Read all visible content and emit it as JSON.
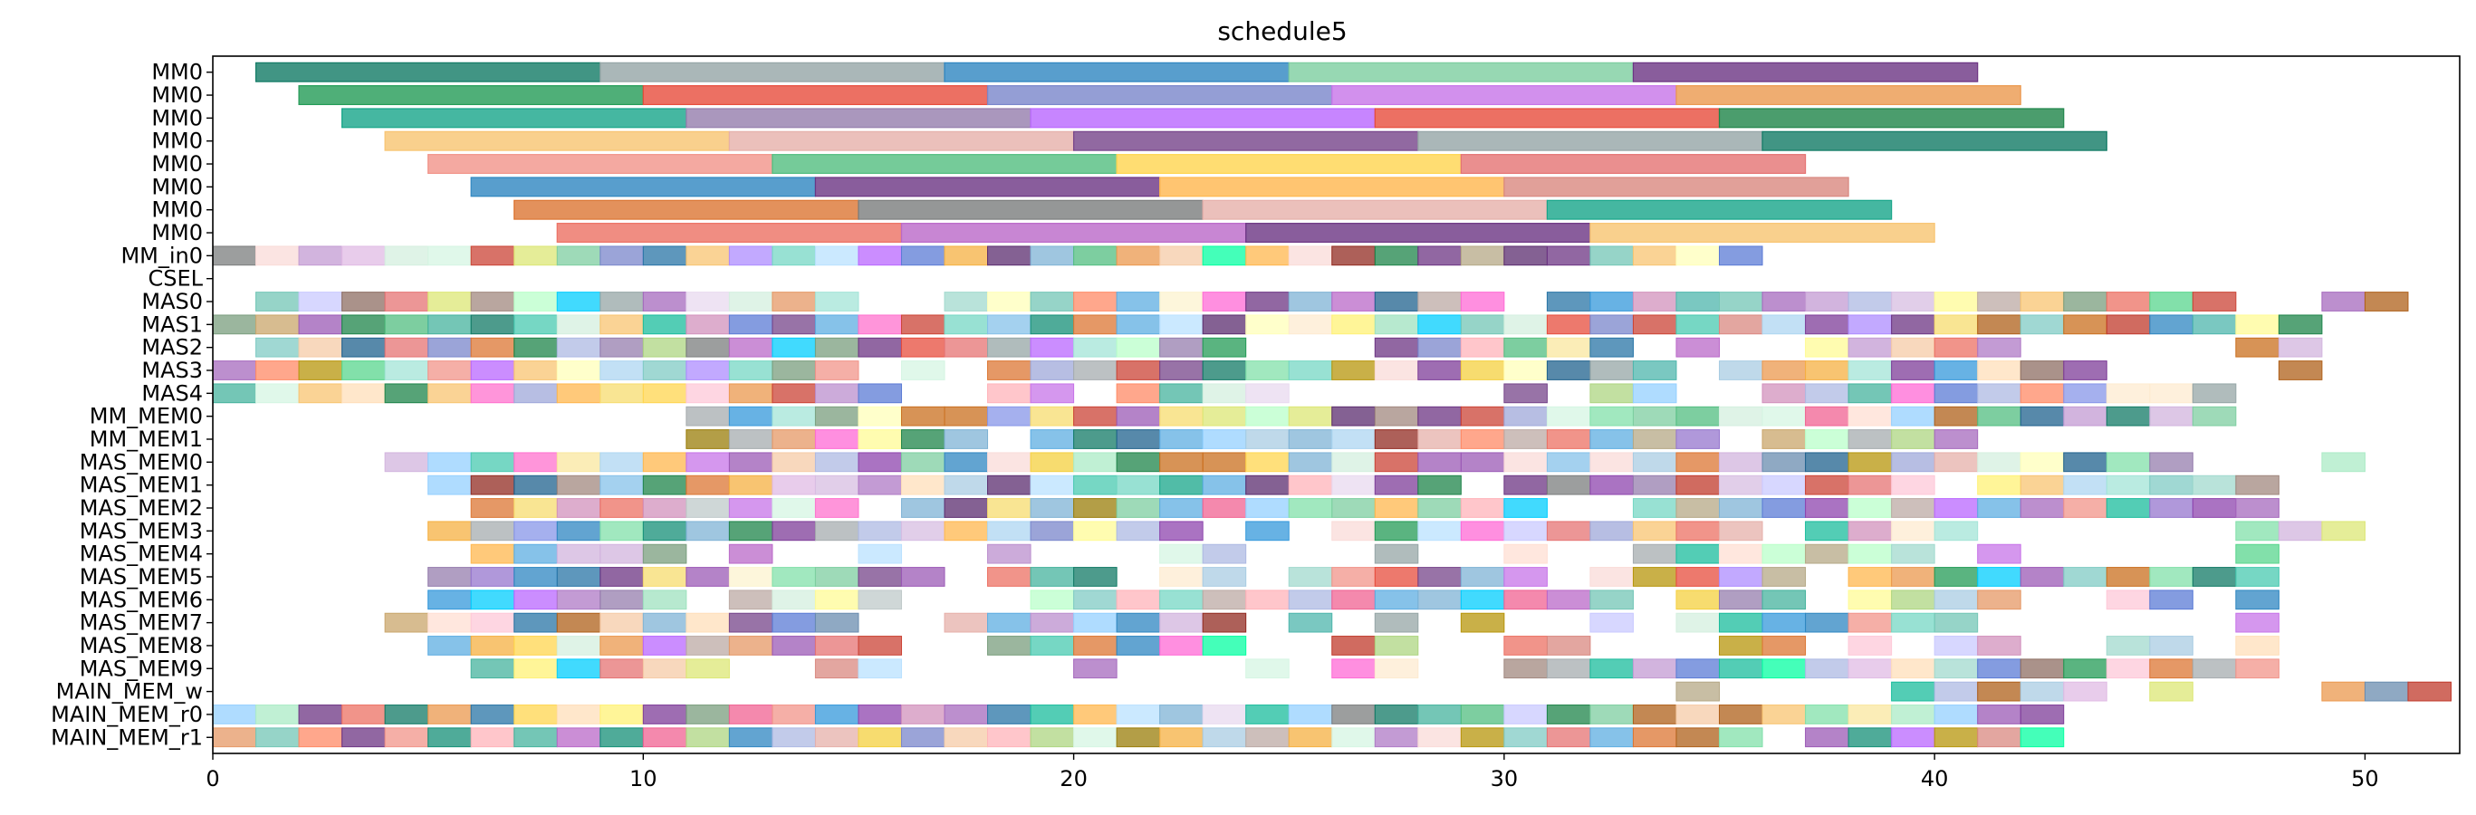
{
  "chart_data": {
    "type": "gantt",
    "title": "schedule5",
    "xlabel": "",
    "ylabel": "",
    "xlim": [
      0,
      52.2
    ],
    "xticks": [
      0,
      10,
      20,
      30,
      40,
      50
    ],
    "grid": false,
    "rows": [
      "MM0",
      "MM0",
      "MM0",
      "MM0",
      "MM0",
      "MM0",
      "MM0",
      "MM0",
      "MM_in0",
      "CSEL",
      "MAS0",
      "MAS1",
      "MAS2",
      "MAS3",
      "MAS4",
      "MM_MEM0",
      "MM_MEM1",
      "MAS_MEM0",
      "MAS_MEM1",
      "MAS_MEM2",
      "MAS_MEM3",
      "MAS_MEM4",
      "MAS_MEM5",
      "MAS_MEM6",
      "MAS_MEM7",
      "MAS_MEM8",
      "MAS_MEM9",
      "MAIN_MEM_w",
      "MAIN_MEM_r0",
      "MAIN_MEM_r1"
    ],
    "palette": [
      "#5dade2",
      "#8e44ad",
      "#a569bd",
      "#7d3c98",
      "#58d68d",
      "#52be80",
      "#f4d03f",
      "#48c9b0",
      "#e74c3c",
      "#cb4335",
      "#7fb3d5",
      "#a9cce3",
      "#85c1e9",
      "#2e86c1",
      "#3498db",
      "#5b7bd5",
      "#9b59b6",
      "#c39bd3",
      "#76448a",
      "#ec7063",
      "#f1948a",
      "#d98880",
      "#af7ac5",
      "#bb8fce",
      "#e59866",
      "#f5b041",
      "#f8c471",
      "#7dcea0",
      "#82e0aa",
      "#abebc6",
      "#73c6b6",
      "#45b39d",
      "#17a589",
      "#1abc9c",
      "#aed6f1",
      "#d2b4de",
      "#e8daef",
      "#fadbd8",
      "#fdebd0",
      "#d5f5e3",
      "#d4efdf",
      "#fcf3cf",
      "#f9e79f",
      "#f7dc6f",
      "#a3e4d7",
      "#76d7c4",
      "#eb984e",
      "#dc7633",
      "#c0392b",
      "#922b21",
      "#6c3483",
      "#5b2c6f",
      "#1f618d",
      "#2874a6",
      "#148f77",
      "#117a65",
      "#1e8449",
      "#239b56",
      "#b7950b",
      "#9a7d0a",
      "#ca6f1e",
      "#af601a",
      "#7b7d7d",
      "#95a5a6",
      "#a6acaf",
      "#bfc9ca",
      "#ff6ad5",
      "#c774e8",
      "#ad8cff",
      "#8795e8",
      "#94d0ff",
      "#ff71ce",
      "#01cdfe",
      "#05ffa1",
      "#b967ff",
      "#fffb96",
      "#e6b0aa",
      "#f5cba7",
      "#a2d9ce",
      "#d7bde2",
      "#adb9e3",
      "#9fe2bf",
      "#ffb3ba",
      "#ffdfba",
      "#ffffba",
      "#baffc9",
      "#bae1ff",
      "#c9c9ff",
      "#e0bbe4",
      "#957dad",
      "#d291bc",
      "#fec8d8",
      "#ffdfd3",
      "#6a8caf",
      "#7a9e7e",
      "#b5a886",
      "#c9a66b",
      "#8d6e63",
      "#a1887f",
      "#bcaaa4",
      "#7986cb",
      "#9fa8da",
      "#4db6ac",
      "#80cbc4",
      "#aed581",
      "#dce775",
      "#fff176",
      "#ffd54f",
      "#ffb74d",
      "#ff8a65",
      "#e57373",
      "#f06292",
      "#ba68c8",
      "#9575cd"
    ],
    "rowData": [
      [
        [
          1,
          9
        ],
        [
          9,
          17
        ],
        [
          17,
          25
        ],
        [
          25,
          33
        ],
        [
          33,
          41
        ]
      ],
      [
        [
          2,
          10
        ],
        [
          10,
          18
        ],
        [
          18,
          26
        ],
        [
          26,
          34
        ],
        [
          34,
          42
        ]
      ],
      [
        [
          3,
          11
        ],
        [
          11,
          19
        ],
        [
          19,
          27
        ],
        [
          27,
          35
        ],
        [
          35,
          43
        ]
      ],
      [
        [
          4,
          12
        ],
        [
          12,
          20
        ],
        [
          20,
          28
        ],
        [
          28,
          36
        ],
        [
          36,
          44
        ]
      ],
      [
        [
          5,
          13
        ],
        [
          13,
          21
        ],
        [
          21,
          29
        ],
        [
          29,
          37
        ]
      ],
      [
        [
          6,
          14
        ],
        [
          14,
          22
        ],
        [
          22,
          30
        ],
        [
          30,
          38
        ]
      ],
      [
        [
          7,
          15
        ],
        [
          15,
          23
        ],
        [
          23,
          31
        ],
        [
          31,
          39
        ]
      ],
      [
        [
          8,
          16
        ],
        [
          16,
          24
        ],
        [
          24,
          32
        ],
        [
          32,
          40
        ]
      ],
      [
        [
          0,
          36
        ]
      ],
      [],
      [
        [
          1,
          15
        ],
        [
          17,
          30
        ],
        [
          31,
          47
        ],
        [
          49,
          51
        ]
      ],
      [
        [
          0,
          48
        ],
        [
          48,
          49
        ]
      ],
      [
        [
          1,
          15
        ],
        [
          15,
          24
        ],
        [
          27,
          28
        ],
        [
          28,
          33
        ],
        [
          34,
          35
        ],
        [
          37,
          42
        ],
        [
          47,
          49
        ]
      ],
      [
        [
          0,
          15
        ],
        [
          16,
          17
        ],
        [
          18,
          34
        ],
        [
          35,
          44
        ],
        [
          48,
          49
        ]
      ],
      [
        [
          0,
          9
        ],
        [
          9,
          15
        ],
        [
          15,
          16
        ],
        [
          18,
          19
        ],
        [
          19,
          20
        ],
        [
          21,
          25
        ],
        [
          30,
          31
        ],
        [
          32,
          34
        ],
        [
          36,
          47
        ]
      ],
      [
        [
          11,
          47
        ]
      ],
      [
        [
          11,
          17
        ],
        [
          17,
          18
        ],
        [
          19,
          35
        ],
        [
          36,
          41
        ]
      ],
      [
        [
          4,
          12
        ],
        [
          12,
          32
        ],
        [
          32,
          34
        ],
        [
          34,
          46
        ],
        [
          49,
          50
        ]
      ],
      [
        [
          5,
          29
        ],
        [
          30,
          40
        ],
        [
          41,
          48
        ]
      ],
      [
        [
          6,
          11
        ],
        [
          11,
          15
        ],
        [
          16,
          31
        ],
        [
          33,
          48
        ]
      ],
      [
        [
          5,
          18
        ],
        [
          18,
          20
        ],
        [
          20,
          23
        ],
        [
          24,
          25
        ],
        [
          26,
          36
        ],
        [
          37,
          41
        ],
        [
          47,
          50
        ]
      ],
      [
        [
          6,
          11
        ],
        [
          12,
          13
        ],
        [
          15,
          16
        ],
        [
          18,
          19
        ],
        [
          22,
          24
        ],
        [
          27,
          28
        ],
        [
          30,
          31
        ],
        [
          33,
          38
        ],
        [
          38,
          40
        ],
        [
          41,
          42
        ],
        [
          47,
          48
        ]
      ],
      [
        [
          5,
          15
        ],
        [
          15,
          17
        ],
        [
          18,
          20
        ],
        [
          20,
          21
        ],
        [
          22,
          24
        ],
        [
          25,
          31
        ],
        [
          32,
          37
        ],
        [
          38,
          44
        ],
        [
          44,
          48
        ]
      ],
      [
        [
          5,
          11
        ],
        [
          12,
          16
        ],
        [
          19,
          25
        ],
        [
          25,
          33
        ],
        [
          34,
          37
        ],
        [
          38,
          42
        ],
        [
          44,
          46
        ],
        [
          47,
          48
        ]
      ],
      [
        [
          4,
          8
        ],
        [
          8,
          13
        ],
        [
          13,
          15
        ],
        [
          17,
          24
        ],
        [
          25,
          26
        ],
        [
          27,
          28
        ],
        [
          29,
          30
        ],
        [
          32,
          33
        ],
        [
          34,
          35
        ],
        [
          35,
          41
        ],
        [
          47,
          48
        ]
      ],
      [
        [
          5,
          16
        ],
        [
          18,
          24
        ],
        [
          26,
          27
        ],
        [
          27,
          28
        ],
        [
          30,
          32
        ],
        [
          35,
          37
        ],
        [
          38,
          39
        ],
        [
          40,
          42
        ],
        [
          44,
          45
        ],
        [
          45,
          46
        ],
        [
          47,
          48
        ]
      ],
      [
        [
          6,
          12
        ],
        [
          14,
          16
        ],
        [
          20,
          21
        ],
        [
          24,
          25
        ],
        [
          26,
          28
        ],
        [
          30,
          33
        ],
        [
          33,
          35
        ],
        [
          35,
          36
        ],
        [
          36,
          41
        ],
        [
          41,
          42
        ],
        [
          42,
          44
        ],
        [
          44,
          45
        ],
        [
          45,
          46
        ],
        [
          46,
          48
        ]
      ],
      [
        [
          34,
          35
        ],
        [
          39,
          44
        ],
        [
          45,
          46
        ],
        [
          49,
          52
        ]
      ],
      [
        [
          0,
          36
        ],
        [
          36,
          43
        ]
      ],
      [
        [
          0,
          36
        ],
        [
          37,
          43
        ]
      ]
    ]
  }
}
